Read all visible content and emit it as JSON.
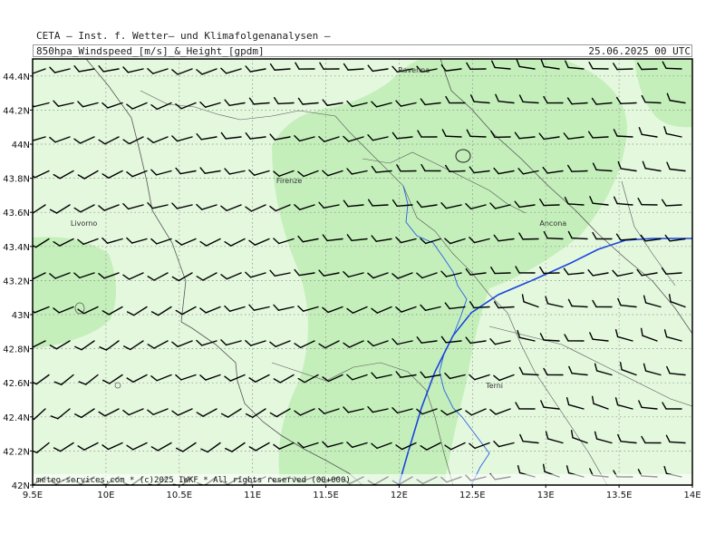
{
  "header": {
    "institute": "CETA – Inst. f. Wetter– und Klimafolgenanalysen –",
    "title": "850hpa_Windspeed_[m/s]_&_Height_[gpdm]",
    "date": "25.06.2025 00 UTC"
  },
  "footer": {
    "copyright": "meteo-services.com * (c)2025 IWKF * All rights reserved (00+000)"
  },
  "axes": {
    "lon_ticks": [
      "9.5E",
      "10E",
      "10.5E",
      "11E",
      "11.5E",
      "12E",
      "12.5E",
      "13E",
      "13.5E",
      "14E"
    ],
    "lat_ticks": [
      "42N",
      "42.2N",
      "42.4N",
      "42.6N",
      "42.8N",
      "43N",
      "43.2N",
      "43.4N",
      "43.6N",
      "43.8N",
      "44N",
      "44.2N",
      "44.4N"
    ],
    "lon_range": [
      9.5,
      14.0
    ],
    "lat_range": [
      42.0,
      44.5
    ]
  },
  "cities": [
    {
      "name": "Ravenna",
      "lon": 12.1,
      "lat": 44.42
    },
    {
      "name": "Firenze",
      "lon": 11.25,
      "lat": 43.77
    },
    {
      "name": "Livorno",
      "lon": 9.85,
      "lat": 43.52
    },
    {
      "name": "Ancona",
      "lon": 13.05,
      "lat": 43.52
    },
    {
      "name": "Terni",
      "lon": 12.65,
      "lat": 42.57
    }
  ],
  "colors": {
    "background_field": "#e4f8de",
    "stronger_wind_field": "#c4efbb",
    "coast_border": "#555555",
    "river": "#2a5fe8",
    "height_contour": "#1a44e0",
    "grid": "#888888",
    "barb": "#000000"
  }
}
